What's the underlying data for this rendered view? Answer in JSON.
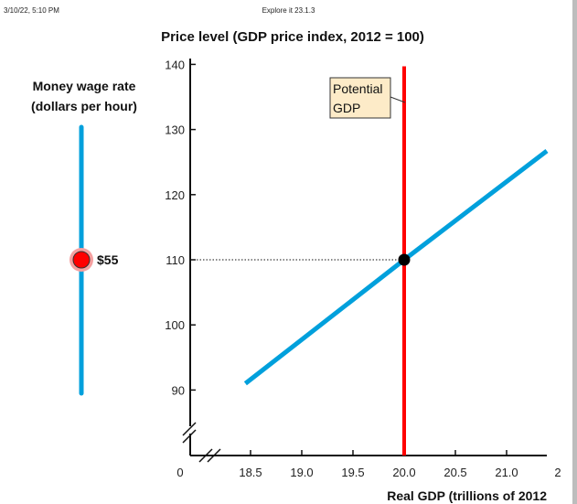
{
  "header": {
    "timestamp": "3/10/22, 5:10 PM",
    "title": "Explore it 23.1.3"
  },
  "slider": {
    "label_line1": "Money wage rate",
    "label_line2": "(dollars per hour)",
    "value_label": "$55",
    "knob_color": "#ff0000",
    "track_color": "#00a0dc"
  },
  "chart_data": {
    "type": "line",
    "title": "Price level (GDP price index, 2012 = 100)",
    "xlabel": "Real GDP (trillions of 2012",
    "x_origin_label": "0",
    "x_ticks": [
      "18.5",
      "19.0",
      "19.5",
      "20.0",
      "20.5",
      "21.0",
      "2"
    ],
    "y_ticks": [
      "90",
      "100",
      "110",
      "120",
      "130",
      "140"
    ],
    "xlim": [
      18.0,
      21.5
    ],
    "ylim": [
      80,
      142
    ],
    "axis_breaks": true,
    "grid": false,
    "series": [
      {
        "type": "line",
        "color": "#00a0dc",
        "points": [
          [
            18.45,
            91
          ],
          [
            20.0,
            110
          ],
          [
            21.5,
            128
          ]
        ]
      },
      {
        "type": "vertical",
        "name": "Potential GDP",
        "color": "#ff0000",
        "x": 20.0,
        "y_top": 139.7
      }
    ],
    "equilibrium": {
      "x": 20.0,
      "y": 110
    },
    "annotation": {
      "line1": "Potential",
      "line2": "GDP",
      "box_color": "#fdebc8"
    }
  }
}
